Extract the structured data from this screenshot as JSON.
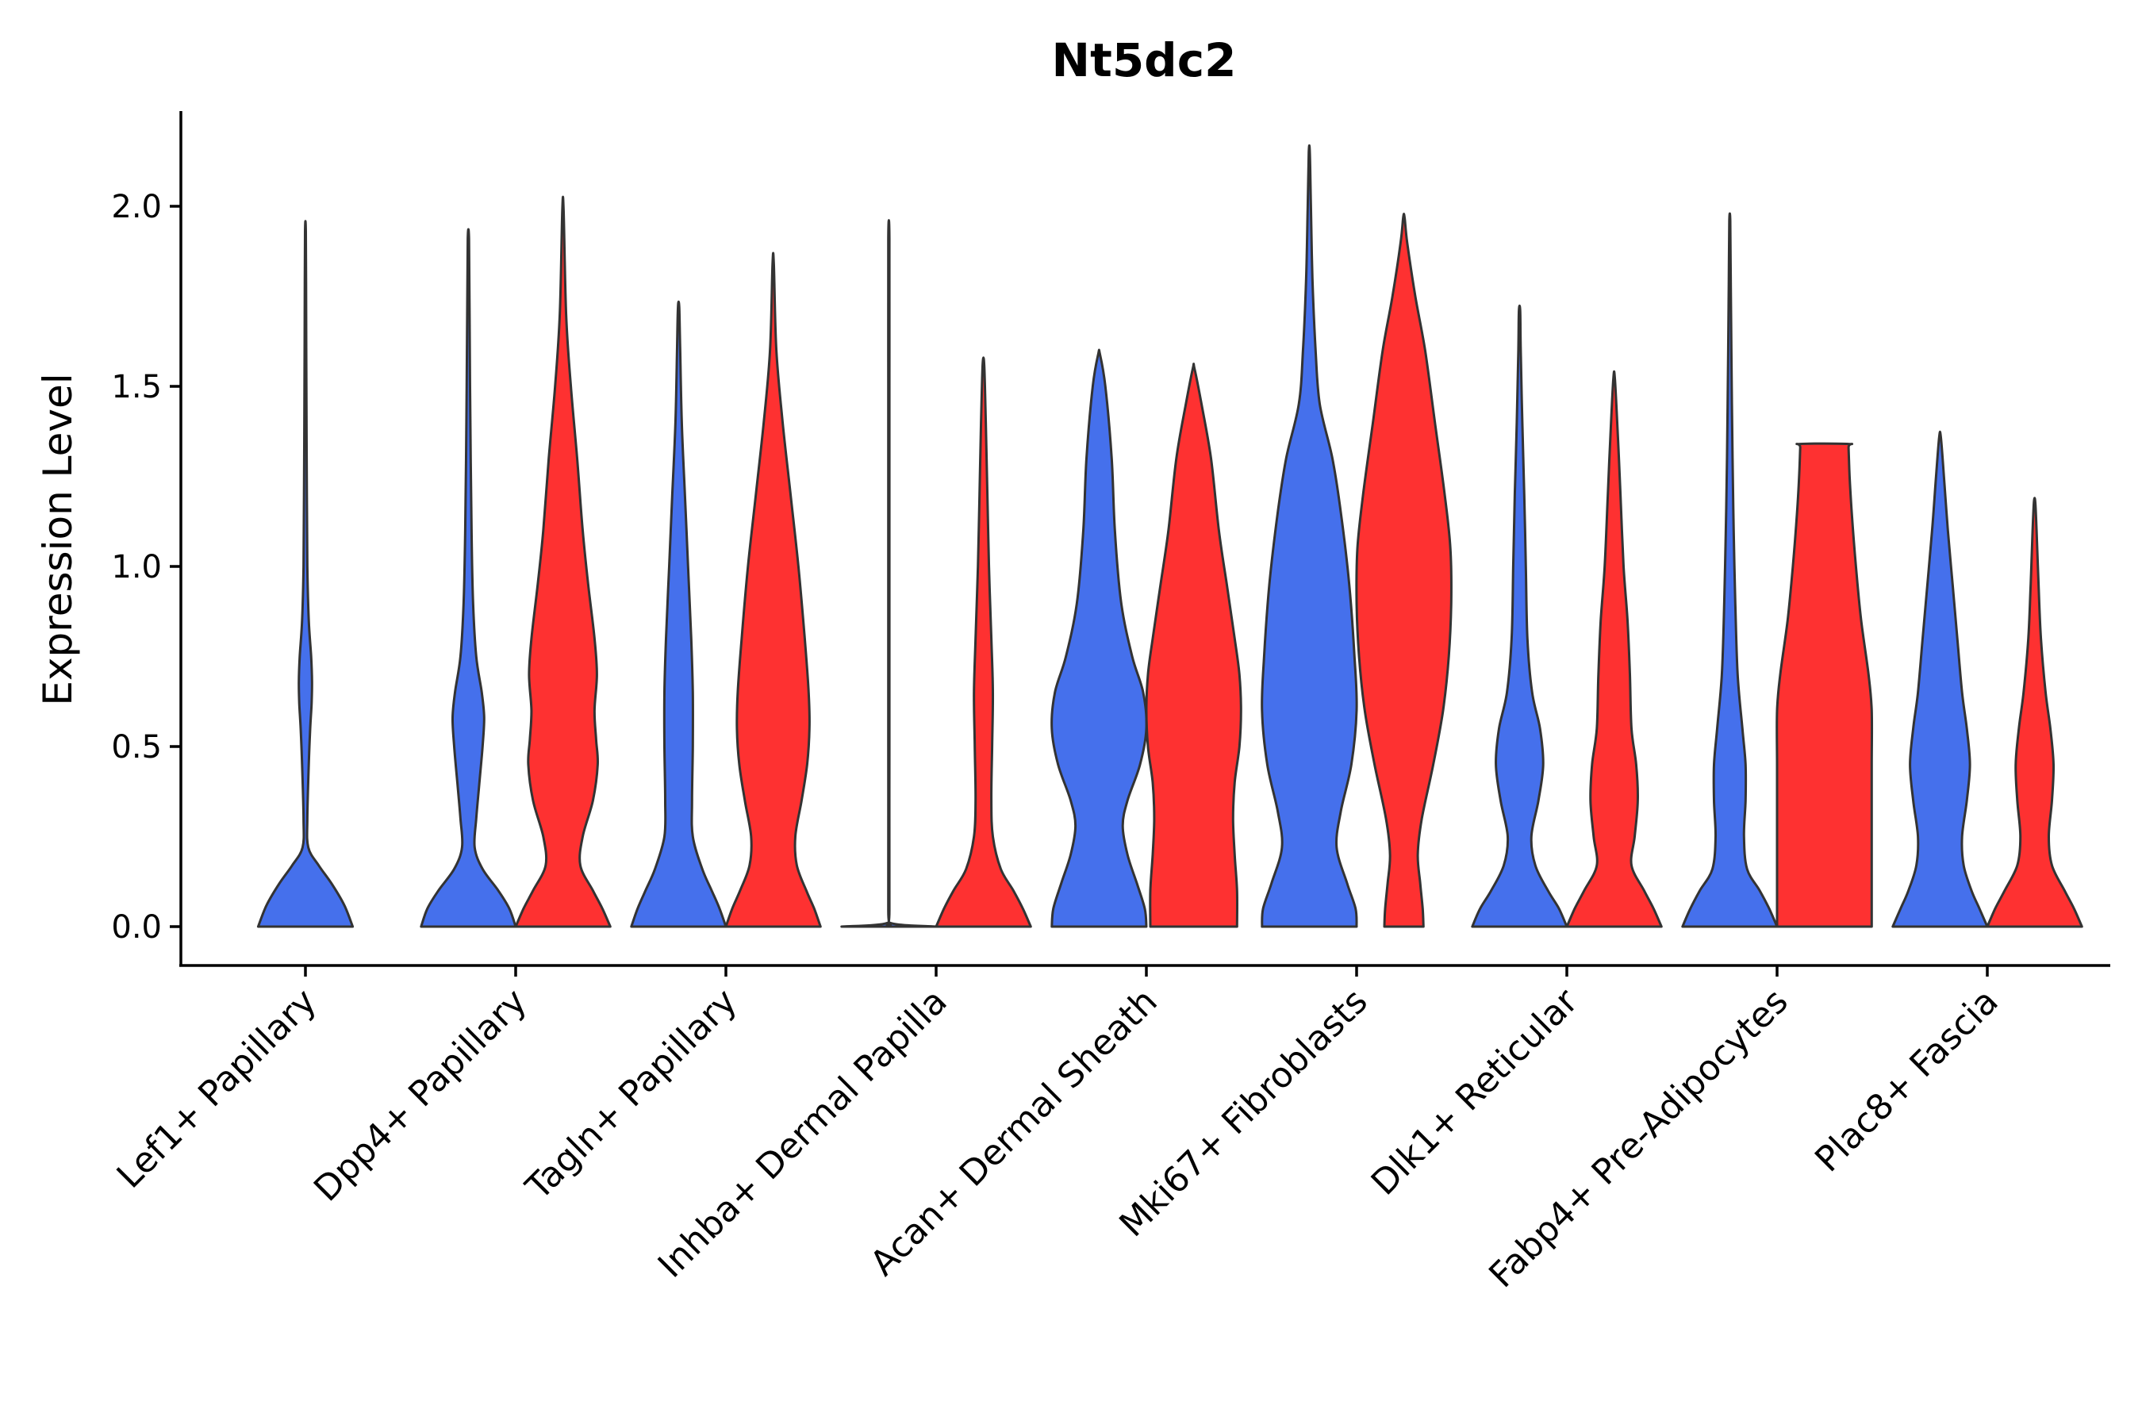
{
  "chart_data": {
    "type": "split-violin",
    "title": "Nt5dc2",
    "xlabel": "",
    "ylabel": "Expression Level",
    "ylim": [
      -0.105,
      2.26
    ],
    "yticks": [
      0.0,
      0.5,
      1.0,
      1.5,
      2.0
    ],
    "ytick_labels": [
      "0.0",
      "0.5",
      "1.0",
      "1.5",
      "2.0"
    ],
    "colors": {
      "blue": "#4570ec",
      "red": "#fe3131",
      "outline": "#333333"
    },
    "violins": [
      {
        "name": "Lef1+ Papillary",
        "pos": 1,
        "color": "blue",
        "max": 1.93,
        "halfwidth": 0.45,
        "profile": [
          [
            0,
            1.0
          ],
          [
            0.06,
            0.82
          ],
          [
            0.12,
            0.55
          ],
          [
            0.17,
            0.28
          ],
          [
            0.22,
            0.06
          ],
          [
            0.3,
            0.04
          ],
          [
            0.45,
            0.07
          ],
          [
            0.55,
            0.1
          ],
          [
            0.62,
            0.13
          ],
          [
            0.68,
            0.14
          ],
          [
            0.75,
            0.12
          ],
          [
            0.85,
            0.07
          ],
          [
            1.0,
            0.04
          ],
          [
            1.2,
            0.03
          ],
          [
            1.5,
            0.02
          ],
          [
            1.7,
            0.015
          ],
          [
            1.93,
            0.008
          ]
        ]
      },
      {
        "name": "Dpp4+ Papillary",
        "pos": 1.775,
        "color": "blue",
        "max": 1.91,
        "halfwidth": 0.45,
        "profile": [
          [
            0,
            0.6
          ],
          [
            0.05,
            0.52
          ],
          [
            0.1,
            0.38
          ],
          [
            0.16,
            0.18
          ],
          [
            0.22,
            0.08
          ],
          [
            0.3,
            0.1
          ],
          [
            0.4,
            0.14
          ],
          [
            0.5,
            0.18
          ],
          [
            0.58,
            0.2
          ],
          [
            0.65,
            0.17
          ],
          [
            0.75,
            0.1
          ],
          [
            0.9,
            0.06
          ],
          [
            1.1,
            0.04
          ],
          [
            1.4,
            0.025
          ],
          [
            1.7,
            0.015
          ],
          [
            1.91,
            0.008
          ]
        ]
      },
      {
        "name": "Dpp4+ Papillary",
        "pos": 2.225,
        "color": "red",
        "max": 1.99,
        "halfwidth": 0.45,
        "profile": [
          [
            0,
            0.6
          ],
          [
            0.05,
            0.5
          ],
          [
            0.1,
            0.38
          ],
          [
            0.17,
            0.22
          ],
          [
            0.25,
            0.25
          ],
          [
            0.35,
            0.38
          ],
          [
            0.45,
            0.44
          ],
          [
            0.52,
            0.42
          ],
          [
            0.6,
            0.4
          ],
          [
            0.7,
            0.43
          ],
          [
            0.8,
            0.4
          ],
          [
            0.95,
            0.32
          ],
          [
            1.1,
            0.25
          ],
          [
            1.3,
            0.18
          ],
          [
            1.5,
            0.1
          ],
          [
            1.7,
            0.04
          ],
          [
            1.99,
            0.008
          ]
        ]
      },
      {
        "name": "Tagln+ Papillary",
        "pos": 2.775,
        "color": "blue",
        "max": 1.72,
        "halfwidth": 0.45,
        "profile": [
          [
            0,
            0.6
          ],
          [
            0.05,
            0.52
          ],
          [
            0.1,
            0.42
          ],
          [
            0.16,
            0.3
          ],
          [
            0.25,
            0.18
          ],
          [
            0.35,
            0.17
          ],
          [
            0.5,
            0.18
          ],
          [
            0.65,
            0.18
          ],
          [
            0.8,
            0.16
          ],
          [
            1.0,
            0.12
          ],
          [
            1.2,
            0.08
          ],
          [
            1.4,
            0.04
          ],
          [
            1.6,
            0.02
          ],
          [
            1.72,
            0.008
          ]
        ]
      },
      {
        "name": "Tagln+ Papillary",
        "pos": 3.225,
        "color": "red",
        "max": 1.84,
        "halfwidth": 0.45,
        "profile": [
          [
            0,
            0.6
          ],
          [
            0.05,
            0.52
          ],
          [
            0.1,
            0.42
          ],
          [
            0.17,
            0.3
          ],
          [
            0.25,
            0.28
          ],
          [
            0.35,
            0.36
          ],
          [
            0.45,
            0.43
          ],
          [
            0.55,
            0.46
          ],
          [
            0.65,
            0.45
          ],
          [
            0.8,
            0.4
          ],
          [
            1.0,
            0.32
          ],
          [
            1.2,
            0.22
          ],
          [
            1.4,
            0.12
          ],
          [
            1.6,
            0.04
          ],
          [
            1.84,
            0.008
          ]
        ]
      },
      {
        "name": "Inhba+ Dermal Papilla",
        "pos": 3.775,
        "color": "blue",
        "max": 1.91,
        "halfwidth": 0.45,
        "profile": [
          [
            0,
            0.5
          ],
          [
            0.01,
            0.02
          ],
          [
            0.05,
            0.006
          ],
          [
            0.5,
            0.006
          ],
          [
            1.0,
            0.006
          ],
          [
            1.5,
            0.006
          ],
          [
            1.91,
            0.006
          ]
        ]
      },
      {
        "name": "Inhba+ Dermal Papilla",
        "pos": 4.225,
        "color": "red",
        "max": 1.56,
        "halfwidth": 0.45,
        "profile": [
          [
            0,
            0.6
          ],
          [
            0.05,
            0.5
          ],
          [
            0.1,
            0.38
          ],
          [
            0.16,
            0.22
          ],
          [
            0.25,
            0.12
          ],
          [
            0.35,
            0.1
          ],
          [
            0.5,
            0.11
          ],
          [
            0.65,
            0.12
          ],
          [
            0.8,
            0.1
          ],
          [
            1.0,
            0.07
          ],
          [
            1.2,
            0.05
          ],
          [
            1.4,
            0.03
          ],
          [
            1.56,
            0.01
          ]
        ]
      },
      {
        "name": "Acan+ Dermal Sheath",
        "pos": 4.775,
        "color": "blue",
        "max": 1.59,
        "halfwidth": 0.45,
        "profile": [
          [
            0,
            0.6
          ],
          [
            0.05,
            0.58
          ],
          [
            0.12,
            0.48
          ],
          [
            0.2,
            0.36
          ],
          [
            0.28,
            0.3
          ],
          [
            0.35,
            0.36
          ],
          [
            0.45,
            0.52
          ],
          [
            0.55,
            0.6
          ],
          [
            0.65,
            0.56
          ],
          [
            0.75,
            0.42
          ],
          [
            0.9,
            0.28
          ],
          [
            1.1,
            0.2
          ],
          [
            1.3,
            0.16
          ],
          [
            1.5,
            0.08
          ],
          [
            1.59,
            0.01
          ]
        ]
      },
      {
        "name": "Acan+ Dermal Sheath",
        "pos": 5.225,
        "color": "red",
        "max": 1.55,
        "halfwidth": 0.45,
        "profile": [
          [
            0,
            0.55
          ],
          [
            0.1,
            0.55
          ],
          [
            0.2,
            0.52
          ],
          [
            0.3,
            0.5
          ],
          [
            0.4,
            0.52
          ],
          [
            0.5,
            0.58
          ],
          [
            0.6,
            0.6
          ],
          [
            0.7,
            0.58
          ],
          [
            0.8,
            0.52
          ],
          [
            0.95,
            0.42
          ],
          [
            1.1,
            0.32
          ],
          [
            1.3,
            0.22
          ],
          [
            1.45,
            0.1
          ],
          [
            1.55,
            0.01
          ]
        ]
      },
      {
        "name": "Mki67+ Fibroblasts",
        "pos": 5.775,
        "color": "blue",
        "max": 2.15,
        "halfwidth": 0.45,
        "profile": [
          [
            0,
            0.45
          ],
          [
            0.05,
            0.44
          ],
          [
            0.12,
            0.36
          ],
          [
            0.22,
            0.26
          ],
          [
            0.32,
            0.3
          ],
          [
            0.45,
            0.4
          ],
          [
            0.6,
            0.45
          ],
          [
            0.75,
            0.43
          ],
          [
            0.95,
            0.38
          ],
          [
            1.15,
            0.3
          ],
          [
            1.3,
            0.22
          ],
          [
            1.45,
            0.1
          ],
          [
            1.6,
            0.06
          ],
          [
            1.8,
            0.03
          ],
          [
            2.0,
            0.015
          ],
          [
            2.15,
            0.005
          ]
        ]
      },
      {
        "name": "Mki67+ Fibroblasts",
        "pos": 6.225,
        "color": "red",
        "max": 1.97,
        "halfwidth": 0.45,
        "profile": [
          [
            0,
            0.24
          ],
          [
            0.05,
            0.23
          ],
          [
            0.12,
            0.2
          ],
          [
            0.2,
            0.17
          ],
          [
            0.3,
            0.22
          ],
          [
            0.45,
            0.36
          ],
          [
            0.6,
            0.48
          ],
          [
            0.75,
            0.55
          ],
          [
            0.9,
            0.58
          ],
          [
            1.05,
            0.57
          ],
          [
            1.2,
            0.5
          ],
          [
            1.4,
            0.38
          ],
          [
            1.6,
            0.26
          ],
          [
            1.75,
            0.14
          ],
          [
            1.9,
            0.04
          ],
          [
            1.97,
            0.008
          ]
        ]
      },
      {
        "name": "Dlk1+ Reticular",
        "pos": 6.775,
        "color": "blue",
        "max": 1.71,
        "halfwidth": 0.45,
        "profile": [
          [
            0,
            0.6
          ],
          [
            0.05,
            0.5
          ],
          [
            0.1,
            0.36
          ],
          [
            0.17,
            0.2
          ],
          [
            0.25,
            0.15
          ],
          [
            0.35,
            0.24
          ],
          [
            0.45,
            0.3
          ],
          [
            0.55,
            0.26
          ],
          [
            0.65,
            0.16
          ],
          [
            0.8,
            0.1
          ],
          [
            1.0,
            0.08
          ],
          [
            1.2,
            0.06
          ],
          [
            1.4,
            0.035
          ],
          [
            1.6,
            0.015
          ],
          [
            1.71,
            0.008
          ]
        ]
      },
      {
        "name": "Dlk1+ Reticular",
        "pos": 7.225,
        "color": "red",
        "max": 1.52,
        "halfwidth": 0.45,
        "profile": [
          [
            0,
            0.6
          ],
          [
            0.05,
            0.5
          ],
          [
            0.1,
            0.38
          ],
          [
            0.17,
            0.22
          ],
          [
            0.25,
            0.26
          ],
          [
            0.35,
            0.3
          ],
          [
            0.45,
            0.28
          ],
          [
            0.55,
            0.22
          ],
          [
            0.7,
            0.2
          ],
          [
            0.85,
            0.17
          ],
          [
            1.0,
            0.12
          ],
          [
            1.2,
            0.08
          ],
          [
            1.35,
            0.05
          ],
          [
            1.52,
            0.01
          ]
        ]
      },
      {
        "name": "Fabp4+ Pre-Adipocytes",
        "pos": 7.775,
        "color": "blue",
        "max": 1.96,
        "halfwidth": 0.45,
        "profile": [
          [
            0,
            0.6
          ],
          [
            0.05,
            0.5
          ],
          [
            0.1,
            0.38
          ],
          [
            0.16,
            0.22
          ],
          [
            0.25,
            0.18
          ],
          [
            0.35,
            0.2
          ],
          [
            0.45,
            0.2
          ],
          [
            0.55,
            0.16
          ],
          [
            0.7,
            0.1
          ],
          [
            0.9,
            0.07
          ],
          [
            1.1,
            0.05
          ],
          [
            1.3,
            0.035
          ],
          [
            1.6,
            0.02
          ],
          [
            1.8,
            0.012
          ],
          [
            1.96,
            0.006
          ]
        ]
      },
      {
        "name": "Fabp4+ Pre-Adipocytes",
        "pos": 8.225,
        "color": "red",
        "max": 1.34,
        "halfwidth": 0.45,
        "profile": [
          [
            0,
            0.45
          ],
          [
            0.1,
            0.45
          ],
          [
            0.2,
            0.45
          ],
          [
            0.3,
            0.45
          ],
          [
            0.45,
            0.45
          ],
          [
            0.6,
            0.45
          ],
          [
            0.7,
            0.42
          ],
          [
            0.85,
            0.35
          ],
          [
            1.0,
            0.3
          ],
          [
            1.15,
            0.26
          ],
          [
            1.25,
            0.24
          ],
          [
            1.33,
            0.23
          ],
          [
            1.34,
            0.23
          ]
        ]
      },
      {
        "name": "Plac8+ Fascia",
        "pos": 8.775,
        "color": "blue",
        "max": 1.36,
        "halfwidth": 0.45,
        "profile": [
          [
            0,
            0.6
          ],
          [
            0.05,
            0.5
          ],
          [
            0.1,
            0.4
          ],
          [
            0.17,
            0.3
          ],
          [
            0.25,
            0.28
          ],
          [
            0.35,
            0.34
          ],
          [
            0.45,
            0.38
          ],
          [
            0.55,
            0.34
          ],
          [
            0.65,
            0.28
          ],
          [
            0.8,
            0.22
          ],
          [
            0.95,
            0.16
          ],
          [
            1.1,
            0.1
          ],
          [
            1.25,
            0.05
          ],
          [
            1.36,
            0.01
          ]
        ]
      },
      {
        "name": "Plac8+ Fascia",
        "pos": 9.225,
        "color": "red",
        "max": 1.18,
        "halfwidth": 0.45,
        "profile": [
          [
            0,
            0.6
          ],
          [
            0.05,
            0.5
          ],
          [
            0.1,
            0.38
          ],
          [
            0.17,
            0.22
          ],
          [
            0.25,
            0.18
          ],
          [
            0.35,
            0.22
          ],
          [
            0.45,
            0.24
          ],
          [
            0.55,
            0.2
          ],
          [
            0.65,
            0.14
          ],
          [
            0.8,
            0.08
          ],
          [
            0.95,
            0.05
          ],
          [
            1.1,
            0.025
          ],
          [
            1.18,
            0.008
          ]
        ]
      }
    ],
    "categories": [
      "Lef1+ Papillary",
      "Dpp4+ Papillary",
      "Tagln+ Papillary",
      "Inhba+ Dermal Papilla",
      "Acan+ Dermal Sheath",
      "Mki67+ Fibroblasts",
      "Dlk1+ Reticular",
      "Fabp4+ Pre-Adipocytes",
      "Plac8+ Fascia"
    ],
    "legend": "none",
    "grid": false
  }
}
